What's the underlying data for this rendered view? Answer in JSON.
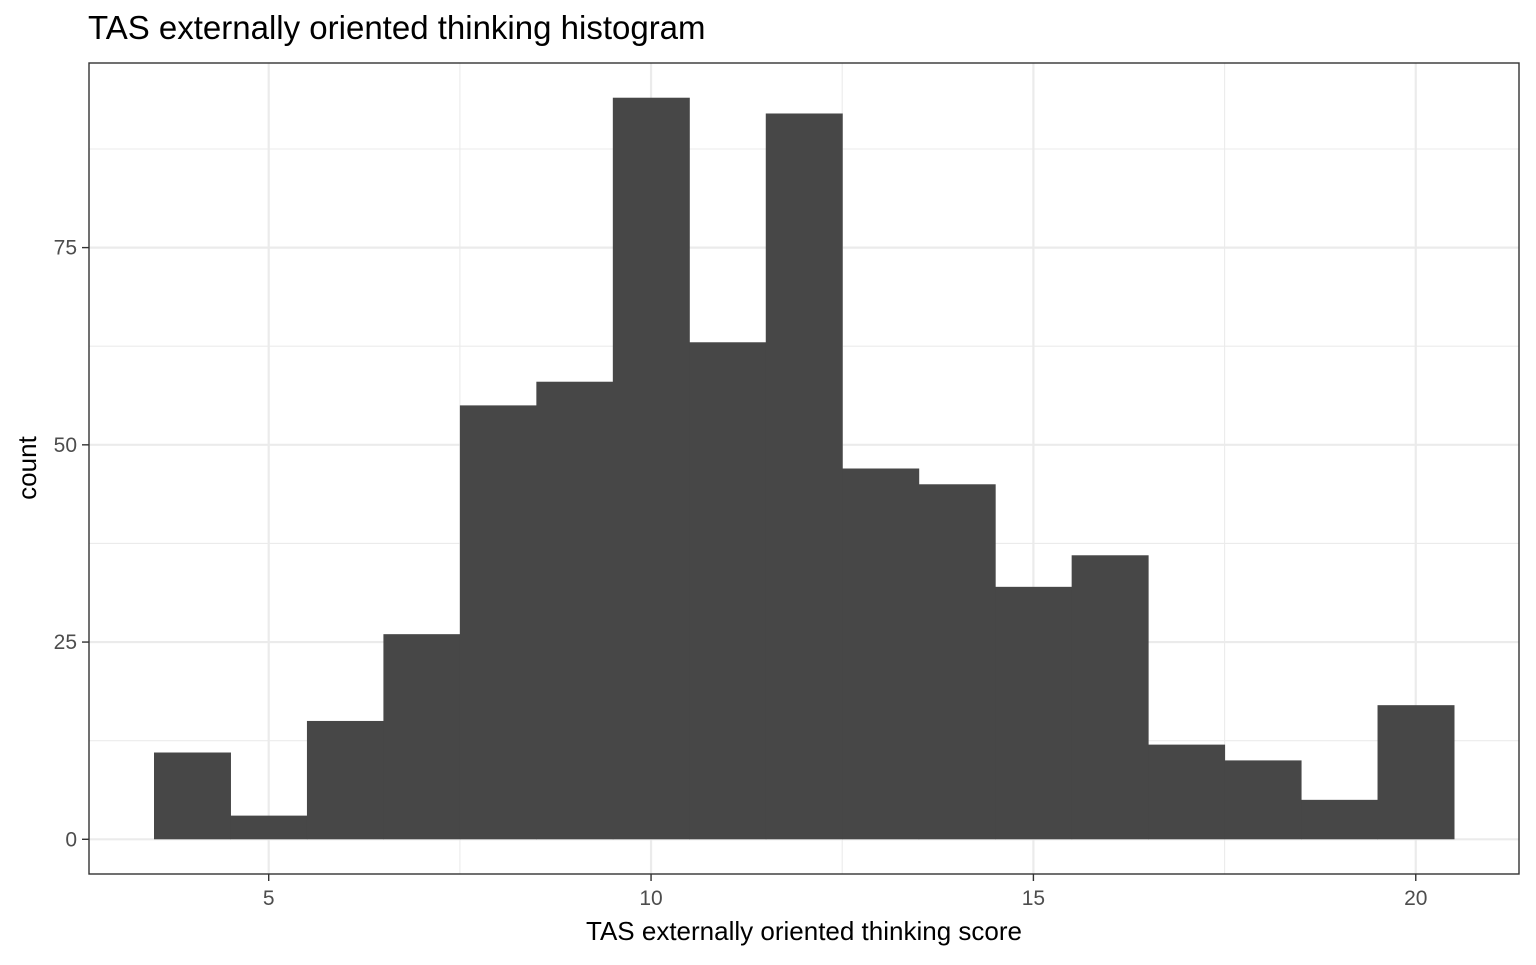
{
  "chart_data": {
    "type": "bar",
    "title": "TAS externally oriented thinking histogram",
    "xlabel": "TAS externally oriented thinking score",
    "ylabel": "count",
    "bin_width": 1,
    "bin_centers": [
      4,
      5,
      6,
      7,
      8,
      9,
      10,
      11,
      12,
      13,
      14,
      15,
      16,
      17,
      18,
      19,
      20
    ],
    "values": [
      11,
      3,
      15,
      26,
      55,
      58,
      94,
      63,
      92,
      47,
      45,
      32,
      36,
      12,
      10,
      5,
      17
    ],
    "xlim": [
      2.65,
      21.35
    ],
    "ylim": [
      -4.4,
      98.4
    ],
    "x_ticks": [
      5,
      10,
      15,
      20
    ],
    "x_tick_labels": [
      "5",
      "10",
      "15",
      "20"
    ],
    "x_minor_ticks": [
      7.5,
      12.5,
      17.5
    ],
    "y_ticks": [
      0,
      25,
      50,
      75
    ],
    "y_tick_labels": [
      "0",
      "25",
      "50",
      "75"
    ],
    "y_minor_ticks": [
      12.5,
      37.5,
      62.5,
      87.5
    ],
    "grid": true,
    "bar_color": "#474747",
    "grid_color": "#ebebeb",
    "panel_border_color": "#333333",
    "background": "#ffffff"
  }
}
